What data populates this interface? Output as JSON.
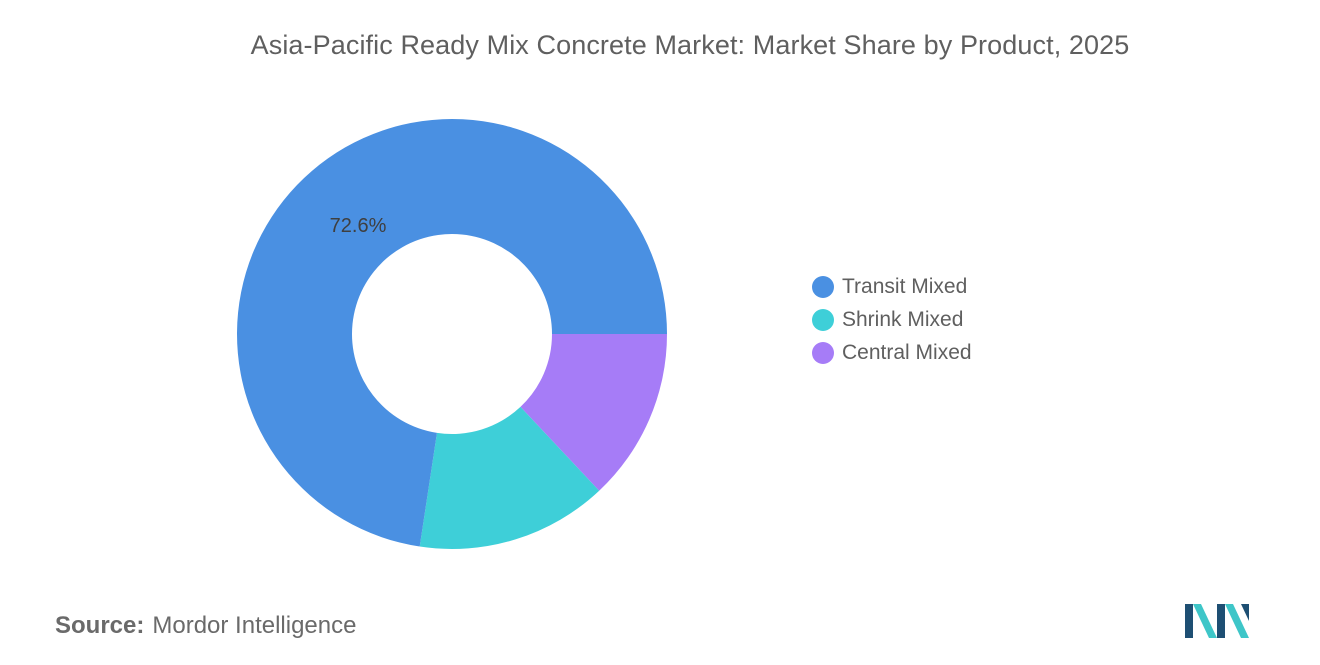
{
  "title": "Asia-Pacific Ready Mix Concrete Market: Market Share by Product, 2025",
  "source": {
    "label": "Source:",
    "value": "Mordor Intelligence"
  },
  "colors": {
    "transit": "#4a90e2",
    "shrink": "#3ecfd8",
    "central": "#a67cf7",
    "logo_dark": "#1e4f73",
    "logo_light": "#3ec6c8"
  },
  "chart_data": {
    "type": "pie",
    "donut": true,
    "title": "Asia-Pacific Ready Mix Concrete Market: Market Share by Product, 2025",
    "legend_position": "right",
    "series": [
      {
        "name": "Transit Mixed",
        "value": 72.6,
        "color": "#4a90e2",
        "label": "72.6%"
      },
      {
        "name": "Shrink Mixed",
        "value": 14.4,
        "color": "#3ecfd8",
        "label": ""
      },
      {
        "name": "Central Mixed",
        "value": 13.0,
        "color": "#a67cf7",
        "label": ""
      }
    ]
  }
}
